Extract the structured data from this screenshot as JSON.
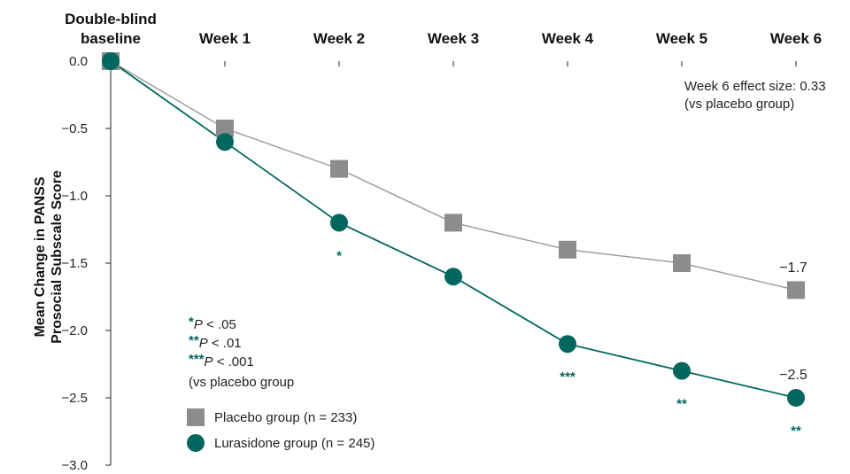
{
  "chart_data": {
    "type": "line",
    "categories": [
      "Double-blind baseline",
      "Week 1",
      "Week 2",
      "Week 3",
      "Week 4",
      "Week 5",
      "Week 6"
    ],
    "category_lines": [
      [
        "Double-blind",
        "baseline"
      ],
      [
        "Week 1"
      ],
      [
        "Week 2"
      ],
      [
        "Week 3"
      ],
      [
        "Week 4"
      ],
      [
        "Week 5"
      ],
      [
        "Week 6"
      ]
    ],
    "ylabel_lines": [
      "Mean Change in PANSS",
      "Prosocial Subscale Score"
    ],
    "ylim": [
      -3.0,
      0.0
    ],
    "yticks": [
      "0.0",
      "−0.5",
      "−1.0",
      "−1.5",
      "−2.0",
      "−2.5",
      "−3.0"
    ],
    "series": [
      {
        "name": "Placebo group (n = 233)",
        "values": [
          0.0,
          -0.5,
          -0.8,
          -1.2,
          -1.4,
          -1.5,
          -1.7
        ],
        "color": "#8c8c8c",
        "line_color": "#9e9e9e",
        "marker": "square",
        "end_label": "−1.7"
      },
      {
        "name": "Lurasidone group (n = 245)",
        "values": [
          0.0,
          -0.6,
          -1.2,
          -1.6,
          -2.1,
          -2.3,
          -2.5
        ],
        "color": "#00665e",
        "line_color": "#00665e",
        "marker": "circle",
        "end_label": "−2.5",
        "significance": [
          "",
          "",
          "*",
          "",
          "***",
          "**",
          "**"
        ]
      }
    ],
    "effect_size_lines": [
      "Week 6 effect size:  0.33",
      "(vs placebo group)"
    ],
    "significance_legend": [
      {
        "stars": "*",
        "p": "P",
        "text": " < .05"
      },
      {
        "stars": "**",
        "p": "P",
        "text": " < .01"
      },
      {
        "stars": "***",
        "p": "P",
        "text": " < .001"
      }
    ],
    "significance_note": "(vs placebo group",
    "legend_position": "bottom-left",
    "grid": false
  }
}
